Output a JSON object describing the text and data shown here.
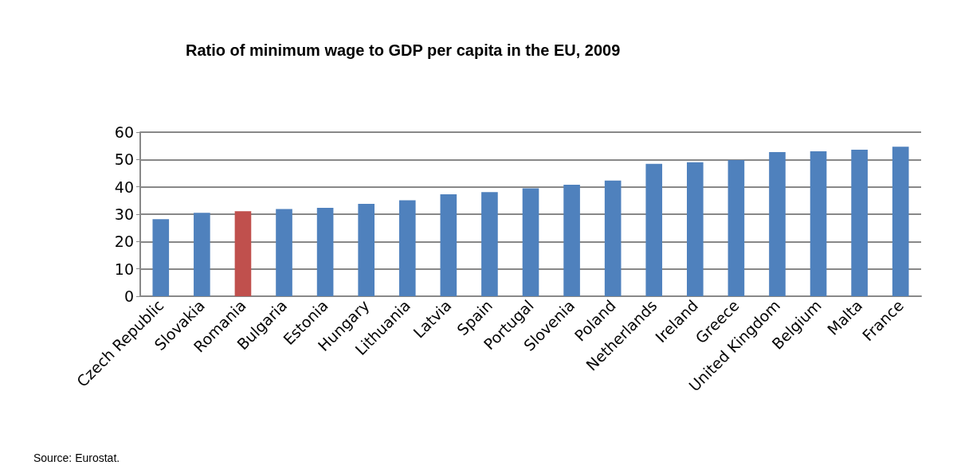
{
  "chart_data": {
    "type": "bar",
    "title": "Ratio of minimum wage to GDP per capita in the EU, 2009",
    "categories": [
      "Czech Republic",
      "Slovakia",
      "Romania",
      "Bulgaria",
      "Estonia",
      "Hungary",
      "Lithuania",
      "Latvia",
      "Spain",
      "Portugal",
      "Slovenia",
      "Poland",
      "Netherlands",
      "Ireland",
      "Greece",
      "United Kingdom",
      "Belgium",
      "Malta",
      "France"
    ],
    "values": [
      28.2,
      30.5,
      31.1,
      31.9,
      32.3,
      33.8,
      35.1,
      37.3,
      38.1,
      39.5,
      40.8,
      42.3,
      48.4,
      49.0,
      49.8,
      52.7,
      53.0,
      53.6,
      54.7
    ],
    "colors": [
      "#4f81bd",
      "#4f81bd",
      "#c0504d",
      "#4f81bd",
      "#4f81bd",
      "#4f81bd",
      "#4f81bd",
      "#4f81bd",
      "#4f81bd",
      "#4f81bd",
      "#4f81bd",
      "#4f81bd",
      "#4f81bd",
      "#4f81bd",
      "#4f81bd",
      "#4f81bd",
      "#4f81bd",
      "#4f81bd",
      "#4f81bd"
    ],
    "ylim": [
      0,
      60
    ],
    "yticks": [
      0,
      10,
      20,
      30,
      40,
      50,
      60
    ],
    "grid": "y",
    "annotations": [
      "Source: Eurostat."
    ]
  }
}
